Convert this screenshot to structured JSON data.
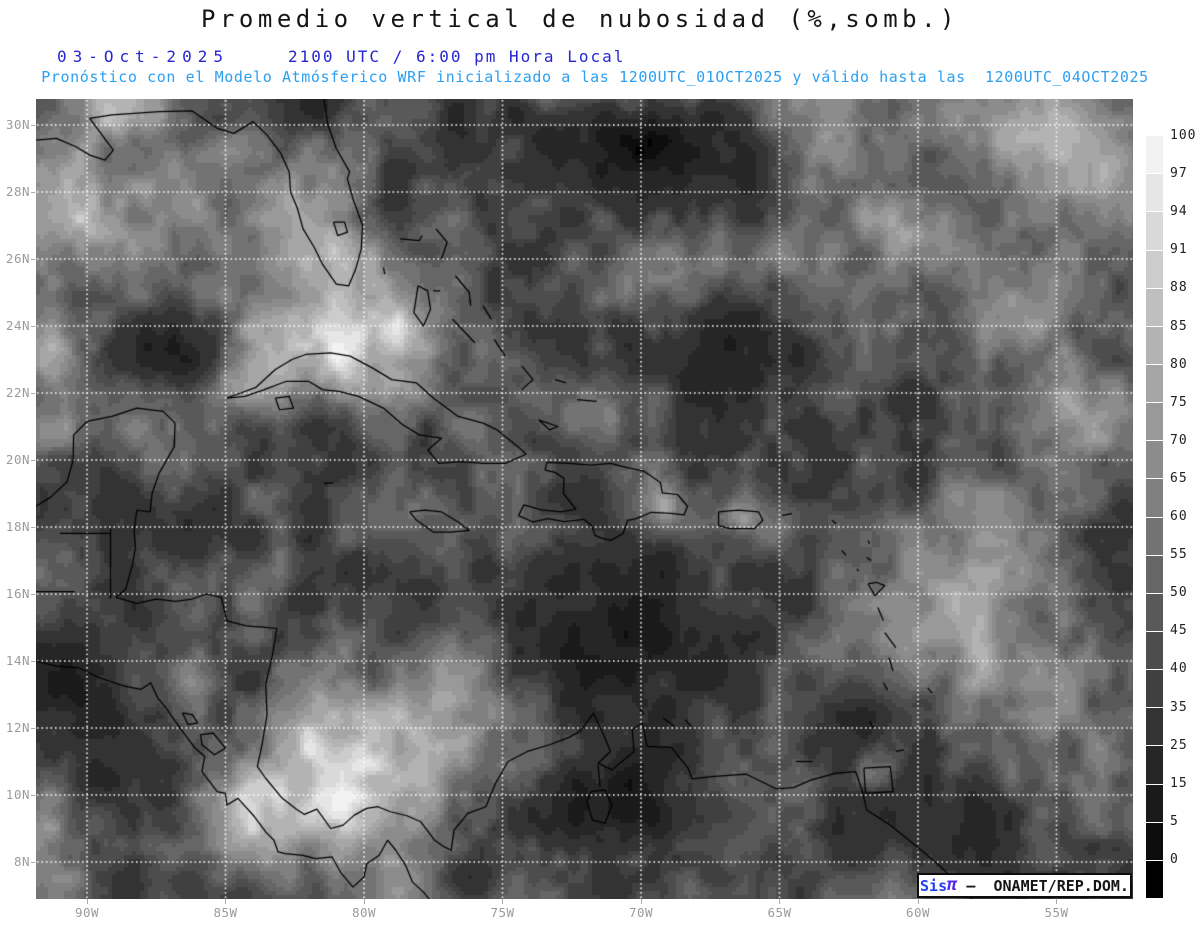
{
  "header": {
    "title": "Promedio vertical de nubosidad (%,somb.)",
    "date": "03-Oct-2025",
    "time": "2100 UTC / 6:00 pm Hora Local",
    "forecast": "Pronóstico con el Modelo Atmósferico WRF inicializado a las 1200UTC_01OCT2025 y válido hasta las  1200UTC_04OCT2025",
    "colors": {
      "title": "#151515",
      "date_blue": "#2626d2",
      "forecast_cyan": "#2b9ff2"
    }
  },
  "axes": {
    "lat_ticks": [
      {
        "label": "30N",
        "lat": 30
      },
      {
        "label": "28N",
        "lat": 28
      },
      {
        "label": "26N",
        "lat": 26
      },
      {
        "label": "24N",
        "lat": 24
      },
      {
        "label": "22N",
        "lat": 22
      },
      {
        "label": "20N",
        "lat": 20
      },
      {
        "label": "18N",
        "lat": 18
      },
      {
        "label": "16N",
        "lat": 16
      },
      {
        "label": "14N",
        "lat": 14
      },
      {
        "label": "12N",
        "lat": 12
      },
      {
        "label": "10N",
        "lat": 10
      },
      {
        "label": "8N",
        "lat": 8
      }
    ],
    "lon_ticks": [
      {
        "label": "90W",
        "lon": -90
      },
      {
        "label": "85W",
        "lon": -85
      },
      {
        "label": "80W",
        "lon": -80
      },
      {
        "label": "75W",
        "lon": -75
      },
      {
        "label": "70W",
        "lon": -70
      },
      {
        "label": "65W",
        "lon": -65
      },
      {
        "label": "60W",
        "lon": -60
      },
      {
        "label": "55W",
        "lon": -55
      }
    ],
    "label_color": "#9b9b9b"
  },
  "colorbar": {
    "labels": [
      "100",
      "97",
      "94",
      "91",
      "88",
      "85",
      "80",
      "75",
      "70",
      "65",
      "60",
      "55",
      "50",
      "45",
      "40",
      "35",
      "25",
      "15",
      "5",
      "0"
    ],
    "levels": [
      0,
      5,
      15,
      25,
      35,
      40,
      45,
      50,
      55,
      60,
      65,
      70,
      75,
      80,
      85,
      88,
      91,
      94,
      97,
      100
    ],
    "top_color": "#ffffff",
    "bottom_color": "#000000"
  },
  "watermark": {
    "brand": "Sis",
    "pi": "π",
    "org": " –  ONAMET/REP.DOM."
  },
  "chart_data": {
    "type": "heatmap",
    "title": "Promedio vertical de nubosidad (%,somb.)",
    "variable": "vertically averaged cloudiness",
    "units": "%",
    "model_run": "1200UTC_01OCT2025",
    "valid_until": "1200UTC_04OCT2025",
    "valid_time": "2100 UTC 03-Oct-2025 / 6:00 pm Hora Local",
    "extent": {
      "lon_min": -91.84,
      "lon_max": -52.24,
      "lat_min": 6.9,
      "lat_max": 30.78
    },
    "grid": {
      "lat_step": 2,
      "lon_step": 5,
      "gridlines": "white dotted"
    },
    "levels": [
      0,
      5,
      15,
      25,
      35,
      40,
      45,
      50,
      55,
      60,
      65,
      70,
      75,
      80,
      85,
      88,
      91,
      94,
      97,
      100
    ],
    "shading": "grayscale, black=0% to white=100%",
    "base_value": 46,
    "features": [
      [
        -90.0,
        27.5,
        3.5,
        2.2,
        34
      ],
      [
        -89.0,
        30.6,
        2.5,
        0.9,
        22
      ],
      [
        -70.0,
        31.3,
        6.0,
        0.9,
        28
      ],
      [
        -82.0,
        27.2,
        2.6,
        2.0,
        26
      ],
      [
        -80.0,
        23.4,
        4.5,
        1.6,
        36
      ],
      [
        -84.0,
        22.3,
        2.2,
        1.4,
        22
      ],
      [
        -87.6,
        20.8,
        1.8,
        1.4,
        18
      ],
      [
        -91.0,
        22.5,
        1.8,
        2.2,
        20
      ],
      [
        -80.6,
        10.8,
        3.6,
        2.4,
        46
      ],
      [
        -84.4,
        9.6,
        1.4,
        1.4,
        26
      ],
      [
        -77.0,
        12.9,
        2.2,
        1.6,
        20
      ],
      [
        -69.1,
        18.5,
        1.4,
        0.9,
        30
      ],
      [
        -59.3,
        15.6,
        3.2,
        2.4,
        30
      ],
      [
        -55.0,
        29.5,
        3.0,
        1.8,
        30
      ],
      [
        -63.5,
        29.8,
        2.2,
        1.4,
        24
      ],
      [
        -59.8,
        27.0,
        2.2,
        1.4,
        26
      ],
      [
        -56.5,
        24.3,
        2.2,
        1.4,
        26
      ],
      [
        -54.5,
        21.8,
        2.0,
        1.5,
        24
      ],
      [
        -66.5,
        18.3,
        0.8,
        0.5,
        22
      ],
      [
        -71.8,
        21.5,
        2.0,
        1.0,
        18
      ],
      [
        -91.5,
        8.5,
        1.5,
        1.2,
        20
      ],
      [
        -61.7,
        10.6,
        0.8,
        0.6,
        30
      ],
      [
        -70.0,
        29.8,
        5.5,
        2.2,
        -36
      ],
      [
        -82.6,
        30.7,
        2.4,
        1.0,
        -20
      ],
      [
        -87.0,
        23.2,
        3.2,
        1.1,
        -26
      ],
      [
        -70.3,
        15.3,
        4.2,
        3.0,
        -40
      ],
      [
        -71.0,
        9.8,
        2.8,
        1.8,
        -32
      ],
      [
        -63.5,
        20.3,
        2.6,
        1.8,
        -24
      ],
      [
        -58.5,
        8.8,
        3.5,
        1.8,
        -22
      ],
      [
        -91.3,
        12.5,
        2.2,
        2.6,
        -24
      ],
      [
        -85.6,
        17.6,
        1.8,
        1.3,
        -18
      ],
      [
        -66.5,
        23.5,
        3.2,
        1.8,
        -18
      ],
      [
        -62.0,
        12.6,
        1.4,
        1.4,
        -18
      ],
      [
        -75.9,
        7.6,
        1.3,
        1.0,
        -18
      ]
    ]
  }
}
